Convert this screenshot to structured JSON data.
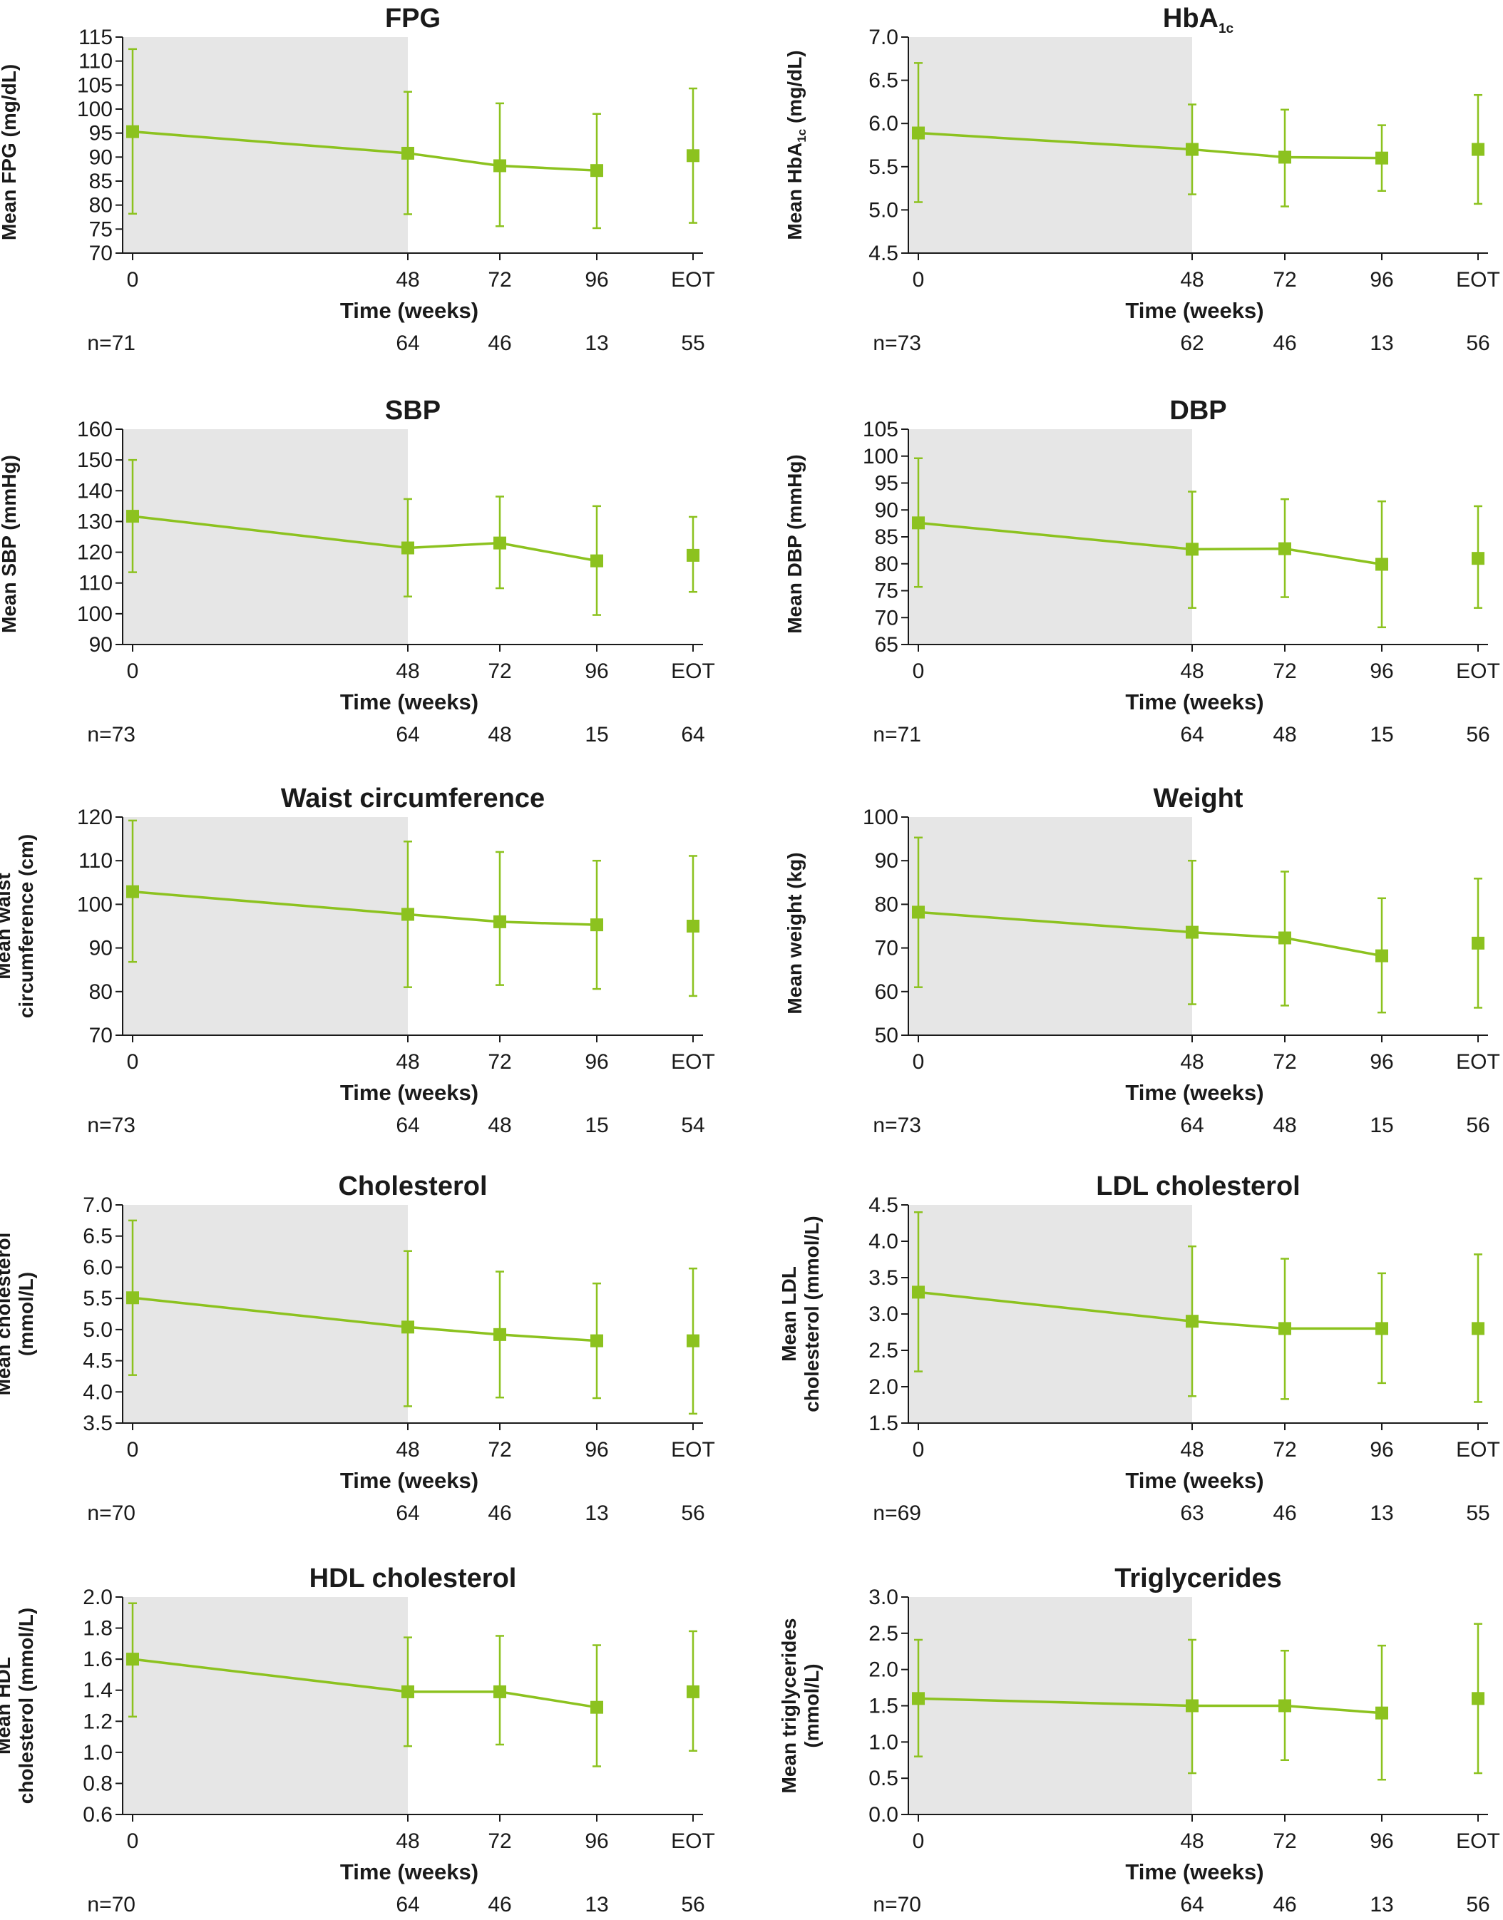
{
  "style": {
    "series_color": "#8cc21f",
    "shade_color": "#e6e6e6",
    "axis_color": "#1a1a1a"
  },
  "chart_data": [
    {
      "type": "line",
      "title": "FPG",
      "title_sub": "",
      "ylabel": [
        "Mean FPG (mg/dL)"
      ],
      "xlabel": "Time (weeks)",
      "categories": [
        "0",
        "48",
        "72",
        "96",
        "EOT"
      ],
      "n": [
        "n=71",
        "64",
        "46",
        "13",
        "55"
      ],
      "ylim": [
        70,
        115
      ],
      "ystep": 5,
      "decimals": 0,
      "shaded_range": [
        "0",
        "48"
      ],
      "mean": [
        95.3,
        90.8,
        88.2,
        87.2,
        90.3
      ],
      "upper": [
        112.5,
        103.6,
        101.2,
        99.0,
        104.3
      ],
      "lower": [
        78.2,
        78.1,
        75.6,
        75.2,
        76.3
      ]
    },
    {
      "type": "line",
      "title": "HbA",
      "title_sub": "1c",
      "ylabel": [
        "Mean HbA",
        "1c",
        " (mg/dL)"
      ],
      "xlabel": "Time (weeks)",
      "categories": [
        "0",
        "48",
        "72",
        "96",
        "EOT"
      ],
      "n": [
        "n=73",
        "62",
        "46",
        "13",
        "56"
      ],
      "ylim": [
        4.5,
        7.0
      ],
      "ystep": 0.5,
      "decimals": 1,
      "shaded_range": [
        "0",
        "48"
      ],
      "mean": [
        5.89,
        5.7,
        5.61,
        5.6,
        5.7
      ],
      "upper": [
        6.7,
        6.22,
        6.16,
        5.98,
        6.33
      ],
      "lower": [
        5.09,
        5.18,
        5.04,
        5.22,
        5.07
      ]
    },
    {
      "type": "line",
      "title": "SBP",
      "title_sub": "",
      "ylabel": [
        "Mean SBP (mmHg)"
      ],
      "xlabel": "Time (weeks)",
      "categories": [
        "0",
        "48",
        "72",
        "96",
        "EOT"
      ],
      "n": [
        "n=73",
        "64",
        "48",
        "15",
        "64"
      ],
      "ylim": [
        90,
        160
      ],
      "ystep": 10,
      "decimals": 0,
      "shaded_range": [
        "0",
        "48"
      ],
      "mean": [
        131.7,
        121.4,
        123.0,
        117.2,
        119.0
      ],
      "upper": [
        150.0,
        137.3,
        138.1,
        135.0,
        131.5
      ],
      "lower": [
        113.5,
        105.6,
        108.3,
        99.6,
        107.1
      ]
    },
    {
      "type": "line",
      "title": "DBP",
      "title_sub": "",
      "ylabel": [
        "Mean DBP (mmHg)"
      ],
      "xlabel": "Time (weeks)",
      "categories": [
        "0",
        "48",
        "72",
        "96",
        "EOT"
      ],
      "n": [
        "n=71",
        "64",
        "48",
        "15",
        "56"
      ],
      "ylim": [
        65,
        105
      ],
      "ystep": 5,
      "decimals": 0,
      "shaded_range": [
        "0",
        "48"
      ],
      "mean": [
        87.6,
        82.7,
        82.8,
        79.9,
        81.0
      ],
      "upper": [
        99.6,
        93.4,
        92.0,
        91.6,
        90.7
      ],
      "lower": [
        75.7,
        71.8,
        73.8,
        68.2,
        71.8
      ]
    },
    {
      "type": "line",
      "title": "Waist circumference",
      "title_sub": "",
      "ylabel": [
        "Mean waist",
        "circumference (cm)"
      ],
      "xlabel": "Time (weeks)",
      "categories": [
        "0",
        "48",
        "72",
        "96",
        "EOT"
      ],
      "n": [
        "n=73",
        "64",
        "48",
        "15",
        "54"
      ],
      "ylim": [
        70,
        120
      ],
      "ystep": 10,
      "decimals": 0,
      "shaded_range": [
        "0",
        "48"
      ],
      "mean": [
        102.9,
        97.7,
        96.0,
        95.3,
        95.0
      ],
      "upper": [
        119.2,
        114.4,
        112.0,
        110.0,
        111.1
      ],
      "lower": [
        86.8,
        81.0,
        81.5,
        80.6,
        79.0
      ]
    },
    {
      "type": "line",
      "title": "Weight",
      "title_sub": "",
      "ylabel": [
        "Mean weight (kg)"
      ],
      "xlabel": "Time (weeks)",
      "categories": [
        "0",
        "48",
        "72",
        "96",
        "EOT"
      ],
      "n": [
        "n=73",
        "64",
        "48",
        "15",
        "56"
      ],
      "ylim": [
        50,
        100
      ],
      "ystep": 10,
      "decimals": 0,
      "shaded_range": [
        "0",
        "48"
      ],
      "mean": [
        78.2,
        73.6,
        72.3,
        68.2,
        71.1
      ],
      "upper": [
        95.3,
        90.0,
        87.5,
        81.4,
        85.9
      ],
      "lower": [
        61.0,
        57.1,
        56.8,
        55.2,
        56.3
      ]
    },
    {
      "type": "line",
      "title": "Cholesterol",
      "title_sub": "",
      "ylabel": [
        "Mean cholesterol",
        "(mmol/L)"
      ],
      "xlabel": "Time (weeks)",
      "categories": [
        "0",
        "48",
        "72",
        "96",
        "EOT"
      ],
      "n": [
        "n=70",
        "64",
        "46",
        "13",
        "56"
      ],
      "ylim": [
        3.5,
        7.0
      ],
      "ystep": 0.5,
      "decimals": 1,
      "shaded_range": [
        "0",
        "48"
      ],
      "mean": [
        5.51,
        5.04,
        4.92,
        4.82,
        4.82
      ],
      "upper": [
        6.75,
        6.26,
        5.93,
        5.74,
        5.98
      ],
      "lower": [
        4.27,
        3.77,
        3.91,
        3.9,
        3.65
      ]
    },
    {
      "type": "line",
      "title": "LDL cholesterol",
      "title_sub": "",
      "ylabel": [
        "Mean LDL",
        "cholesterol (mmol/L)"
      ],
      "xlabel": "Time (weeks)",
      "categories": [
        "0",
        "48",
        "72",
        "96",
        "EOT"
      ],
      "n": [
        "n=69",
        "63",
        "46",
        "13",
        "55"
      ],
      "ylim": [
        1.5,
        4.5
      ],
      "ystep": 0.5,
      "decimals": 1,
      "shaded_range": [
        "0",
        "48"
      ],
      "mean": [
        3.3,
        2.9,
        2.8,
        2.8,
        2.8
      ],
      "upper": [
        4.4,
        3.93,
        3.76,
        3.56,
        3.82
      ],
      "lower": [
        2.21,
        1.87,
        1.83,
        2.05,
        1.79
      ]
    },
    {
      "type": "line",
      "title": "HDL cholesterol",
      "title_sub": "",
      "ylabel": [
        "Mean HDL",
        "cholesterol (mmol/L)"
      ],
      "xlabel": "Time (weeks)",
      "categories": [
        "0",
        "48",
        "72",
        "96",
        "EOT"
      ],
      "n": [
        "n=70",
        "64",
        "46",
        "13",
        "56"
      ],
      "ylim": [
        0.6,
        2.0
      ],
      "ystep": 0.2,
      "decimals": 1,
      "shaded_range": [
        "0",
        "48"
      ],
      "mean": [
        1.6,
        1.39,
        1.39,
        1.29,
        1.39
      ],
      "upper": [
        1.96,
        1.74,
        1.75,
        1.69,
        1.78
      ],
      "lower": [
        1.23,
        1.04,
        1.05,
        0.91,
        1.01
      ]
    },
    {
      "type": "line",
      "title": "Triglycerides",
      "title_sub": "",
      "ylabel": [
        "Mean triglycerides",
        "(mmol/L)"
      ],
      "xlabel": "Time (weeks)",
      "categories": [
        "0",
        "48",
        "72",
        "96",
        "EOT"
      ],
      "n": [
        "n=70",
        "64",
        "46",
        "13",
        "56"
      ],
      "ylim": [
        0.0,
        3.0
      ],
      "ystep": 0.5,
      "decimals": 1,
      "shaded_range": [
        "0",
        "48"
      ],
      "mean": [
        1.6,
        1.5,
        1.5,
        1.4,
        1.6
      ],
      "upper": [
        2.41,
        2.41,
        2.26,
        2.33,
        2.63
      ],
      "lower": [
        0.8,
        0.57,
        0.75,
        0.48,
        0.57
      ]
    }
  ]
}
